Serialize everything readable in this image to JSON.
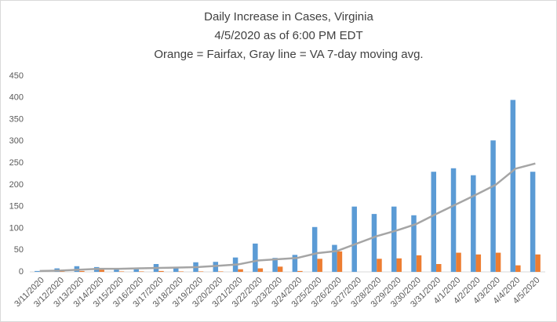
{
  "chart_data": {
    "type": "bar",
    "title": [
      "Daily Increase in Cases, Virginia",
      "4/5/2020 as of 6:00 PM EDT",
      "Orange = Fairfax, Gray line = VA 7-day moving avg."
    ],
    "categories": [
      "3/11/2020",
      "3/12/2020",
      "3/13/2020",
      "3/14/2020",
      "3/15/2020",
      "3/16/2020",
      "3/17/2020",
      "3/18/2020",
      "3/19/2020",
      "3/20/2020",
      "3/21/2020",
      "3/22/2020",
      "3/23/2020",
      "3/24/2020",
      "3/25/2020",
      "3/26/2020",
      "3/27/2020",
      "3/28/2020",
      "3/29/2020",
      "3/30/2020",
      "3/31/2020",
      "4/1/2020",
      "4/2/2020",
      "4/3/2020",
      "4/4/2020",
      "4/5/2020"
    ],
    "series": [
      {
        "type": "bar",
        "color": "#5b9bd5",
        "values": [
          2,
          8,
          13,
          11,
          6,
          6,
          18,
          10,
          22,
          23,
          33,
          65,
          32,
          39,
          103,
          62,
          150,
          133,
          150,
          130,
          230,
          238,
          222,
          302,
          395,
          230
        ]
      },
      {
        "type": "bar",
        "color": "#ed7d31",
        "values": [
          0,
          1,
          2,
          5,
          1,
          1,
          2,
          1,
          1,
          1,
          6,
          8,
          12,
          2,
          30,
          47,
          0,
          30,
          31,
          38,
          18,
          44,
          40,
          44,
          15,
          40
        ]
      },
      {
        "type": "line",
        "color": "#a5a5a5",
        "values": [
          2,
          3,
          5,
          7,
          7,
          8,
          9,
          10,
          11,
          14,
          17,
          26,
          29,
          32,
          43,
          48,
          65,
          82,
          95,
          110,
          133,
          155,
          177,
          200,
          237,
          249
        ]
      }
    ],
    "ylim": [
      0,
      450
    ],
    "yticks": [
      0,
      50,
      100,
      150,
      200,
      250,
      300,
      350,
      400,
      450
    ],
    "grid": false
  }
}
